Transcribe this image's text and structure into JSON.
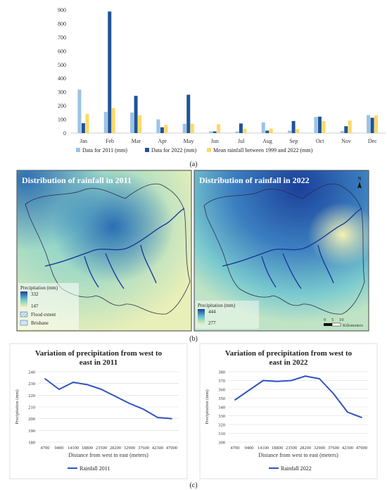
{
  "colors": {
    "bar2011": "#9cc3e4",
    "bar2022": "#1f5597",
    "barMean": "#ffd966",
    "line2011": "#3153c2",
    "line2022": "#3153c2",
    "grid": "#d9d9d9",
    "mapBlue": "#1f5ea8",
    "mapCyan": "#6fc8cf",
    "mapYellow": "#f1f0b4"
  },
  "captions": {
    "a": "(a)",
    "b": "(b)",
    "c": "(c)"
  },
  "maps": {
    "left": {
      "title": "Distribution of rainfall in 2011",
      "legend_title": "Precipitation (mm)",
      "high": "332",
      "low": "147",
      "flood": "Flood extent",
      "brisbane": "Brisbane"
    },
    "right": {
      "title": "Distribution of rainfall in 2022",
      "legend_title": "Precipitation (mm)",
      "high": "444",
      "low": "277",
      "scale_label": "Kilometers",
      "scale_ticks": [
        "0",
        "5",
        "10"
      ],
      "north": "N"
    }
  },
  "chart_data": [
    {
      "type": "bar",
      "categories": [
        "Jan",
        "Feb",
        "Mar",
        "Apr",
        "May",
        "Jun",
        "Jul",
        "Aug",
        "Sep",
        "Oct",
        "Nov",
        "Dec"
      ],
      "series": [
        {
          "name": "Data for 2011 (mm)",
          "values": [
            318,
            155,
            150,
            100,
            68,
            12,
            12,
            78,
            18,
            118,
            15,
            132
          ]
        },
        {
          "name": "Data for 2022 (mm)",
          "values": [
            72,
            888,
            272,
            42,
            280,
            12,
            70,
            18,
            88,
            120,
            50,
            112
          ]
        },
        {
          "name": "Mean rainfall between 1999 and 2022 (mm)",
          "values": [
            140,
            183,
            130,
            60,
            68,
            65,
            32,
            33,
            30,
            88,
            92,
            130
          ]
        }
      ],
      "ylim": [
        0,
        900
      ],
      "yticks": [
        "0",
        "100",
        "200",
        "300",
        "400",
        "500",
        "600",
        "700",
        "800",
        "900"
      ],
      "grid": false,
      "legend": "bottom"
    },
    {
      "type": "line",
      "title": "Variation  of precipitation  from west to east in 2011",
      "xlabel": "Distance from west to east (meters)",
      "ylabel": "Precipitation (mm)",
      "categories": [
        "4700",
        "9400",
        "14100",
        "18800",
        "23500",
        "28200",
        "32900",
        "37600",
        "42300",
        "47000"
      ],
      "series": [
        {
          "name": "Rainfall 2011",
          "values": [
            234,
            225,
            231,
            229,
            225,
            219,
            213,
            208,
            201,
            200
          ]
        }
      ],
      "ylim": [
        180,
        240
      ],
      "yticks": [
        "180",
        "190",
        "200",
        "210",
        "220",
        "230",
        "240"
      ],
      "grid": true,
      "legend": "bottom"
    },
    {
      "type": "line",
      "title": "Variation  of precipitation  from west to east in 2022",
      "xlabel": "Distance from west to east (meters)",
      "ylabel": "Precipitation (mm)",
      "categories": [
        "4700",
        "9400",
        "14100",
        "18800",
        "23500",
        "28200",
        "32900",
        "37600",
        "42300",
        "47000"
      ],
      "series": [
        {
          "name": "Rainfall 2022",
          "values": [
            348,
            359,
            370,
            369,
            370,
            375,
            372,
            355,
            334,
            328
          ]
        }
      ],
      "ylim": [
        300,
        380
      ],
      "yticks": [
        "300",
        "310",
        "320",
        "330",
        "340",
        "350",
        "360",
        "370",
        "380"
      ],
      "grid": true,
      "legend": "bottom"
    }
  ]
}
